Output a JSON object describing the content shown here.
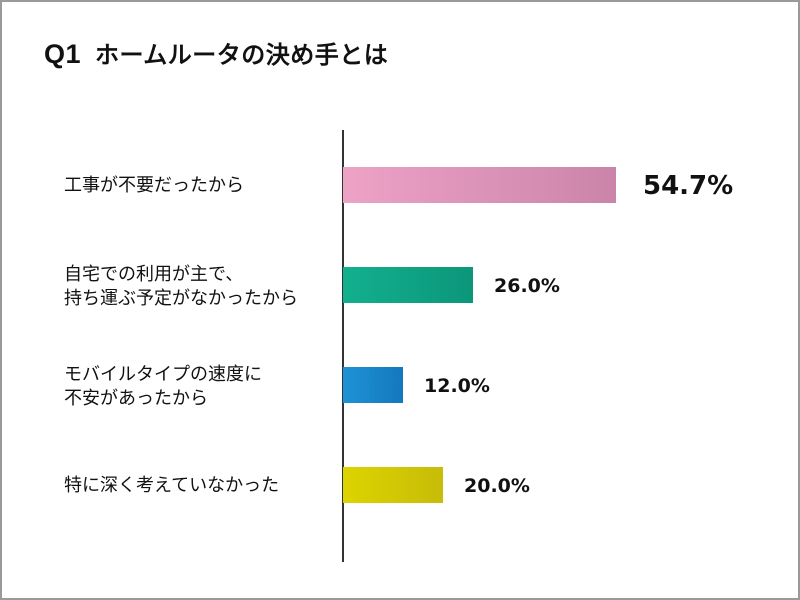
{
  "title": {
    "prefix": "Q1",
    "text": "ホームルータの決め手とは"
  },
  "rows": [
    {
      "label_lines": [
        "工事が不要だったから"
      ],
      "value": 54.7,
      "value_label": "54.7%",
      "color_start": "#EDA2C6",
      "color_end": "#CB84A9",
      "highlight": true
    },
    {
      "label_lines": [
        "自宅での利用が主で、",
        "持ち運ぶ予定がなかったから"
      ],
      "value": 26.0,
      "value_label": "26.0%",
      "color_start": "#12B08E",
      "color_end": "#0C967A",
      "highlight": false
    },
    {
      "label_lines": [
        "モバイルタイプの速度に",
        "不安があったから"
      ],
      "value": 12.0,
      "value_label": "12.0%",
      "color_start": "#1E93D6",
      "color_end": "#1478BC",
      "highlight": false
    },
    {
      "label_lines": [
        "特に深く考えていなかった"
      ],
      "value": 20.0,
      "value_label": "20.0%",
      "color_start": "#DDD400",
      "color_end": "#C7BC08",
      "highlight": false
    }
  ],
  "chart_data": {
    "type": "bar",
    "orientation": "horizontal",
    "title": "Q1 ホームルータの決め手とは",
    "categories": [
      "工事が不要だったから",
      "自宅での利用が主で、持ち運ぶ予定がなかったから",
      "モバイルタイプの速度に不安があったから",
      "特に深く考えていなかった"
    ],
    "values": [
      54.7,
      26.0,
      12.0,
      20.0
    ],
    "value_labels": [
      "54.7%",
      "26.0%",
      "12.0%",
      "20.0%"
    ],
    "colors": [
      "#DD92B8",
      "#10A384",
      "#1A86CA",
      "#D3C804"
    ],
    "xlabel": "",
    "ylabel": "",
    "unit": "%",
    "grid": false,
    "legend": null
  }
}
